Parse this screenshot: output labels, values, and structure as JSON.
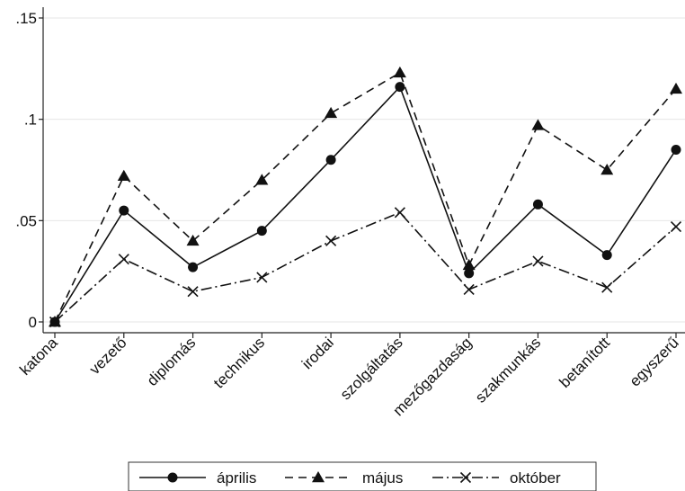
{
  "chart_data": {
    "type": "line",
    "categories": [
      "katona",
      "vezető",
      "diplomás",
      "technikus",
      "irodai",
      "szolgáltatás",
      "mezőgazdaság",
      "szakmunkás",
      "betanított",
      "egyszerű"
    ],
    "ylim": [
      0,
      0.155
    ],
    "yticks": [
      {
        "value": 0,
        "label": "0"
      },
      {
        "value": 0.05,
        "label": ".05"
      },
      {
        "value": 0.1,
        "label": ".1"
      },
      {
        "value": 0.15,
        "label": ".15"
      }
    ],
    "grid": true,
    "legend_position": "bottom",
    "series": [
      {
        "name": "április",
        "marker": "circle",
        "dash": "solid",
        "color": "#111111",
        "values": [
          0.0,
          0.055,
          0.027,
          0.045,
          0.08,
          0.116,
          0.024,
          0.058,
          0.033,
          0.085
        ]
      },
      {
        "name": "május",
        "marker": "triangle",
        "dash": "dashed",
        "color": "#111111",
        "values": [
          0.0,
          0.072,
          0.04,
          0.07,
          0.103,
          0.123,
          0.028,
          0.097,
          0.075,
          0.115
        ]
      },
      {
        "name": "október",
        "marker": "x",
        "dash": "dashdot",
        "color": "#111111",
        "values": [
          0.0,
          0.031,
          0.015,
          0.022,
          0.04,
          0.054,
          0.016,
          0.03,
          0.017,
          0.047
        ]
      }
    ]
  }
}
